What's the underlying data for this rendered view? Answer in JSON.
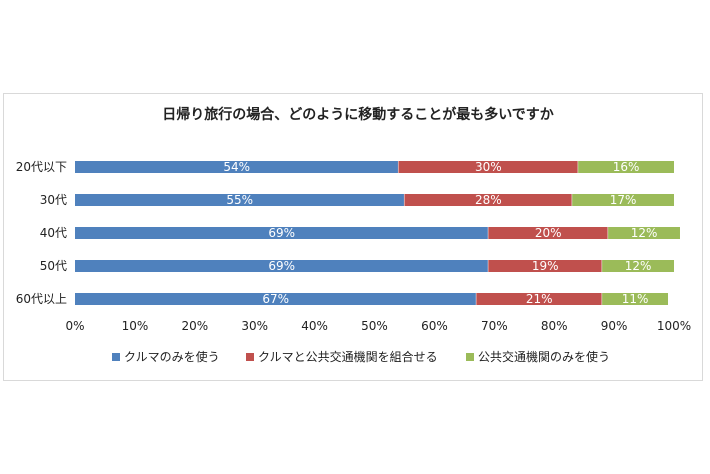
{
  "chart_data": {
    "type": "bar",
    "orientation": "horizontal",
    "stacked": "percent",
    "title": "日帰り旅行の場合、どのように移動することが最も多いですか",
    "categories": [
      "20代以下",
      "30代",
      "40代",
      "50代",
      "60代以上"
    ],
    "series": [
      {
        "name": "クルマのみを使う",
        "color": "#4f81bd",
        "values": [
          54,
          55,
          69,
          69,
          67
        ]
      },
      {
        "name": "クルマと公共交通機関を組合せる",
        "color": "#c0504d",
        "values": [
          30,
          28,
          20,
          19,
          21
        ]
      },
      {
        "name": "公共交通機関のみを使う",
        "color": "#9bbb59",
        "values": [
          16,
          17,
          12,
          12,
          11
        ]
      }
    ],
    "xlim": [
      0,
      100
    ],
    "xticks": [
      "0%",
      "10%",
      "20%",
      "30%",
      "40%",
      "50%",
      "60%",
      "70%",
      "80%",
      "90%",
      "100%"
    ],
    "value_suffix": "%",
    "legend": "bottom",
    "grid": false
  }
}
